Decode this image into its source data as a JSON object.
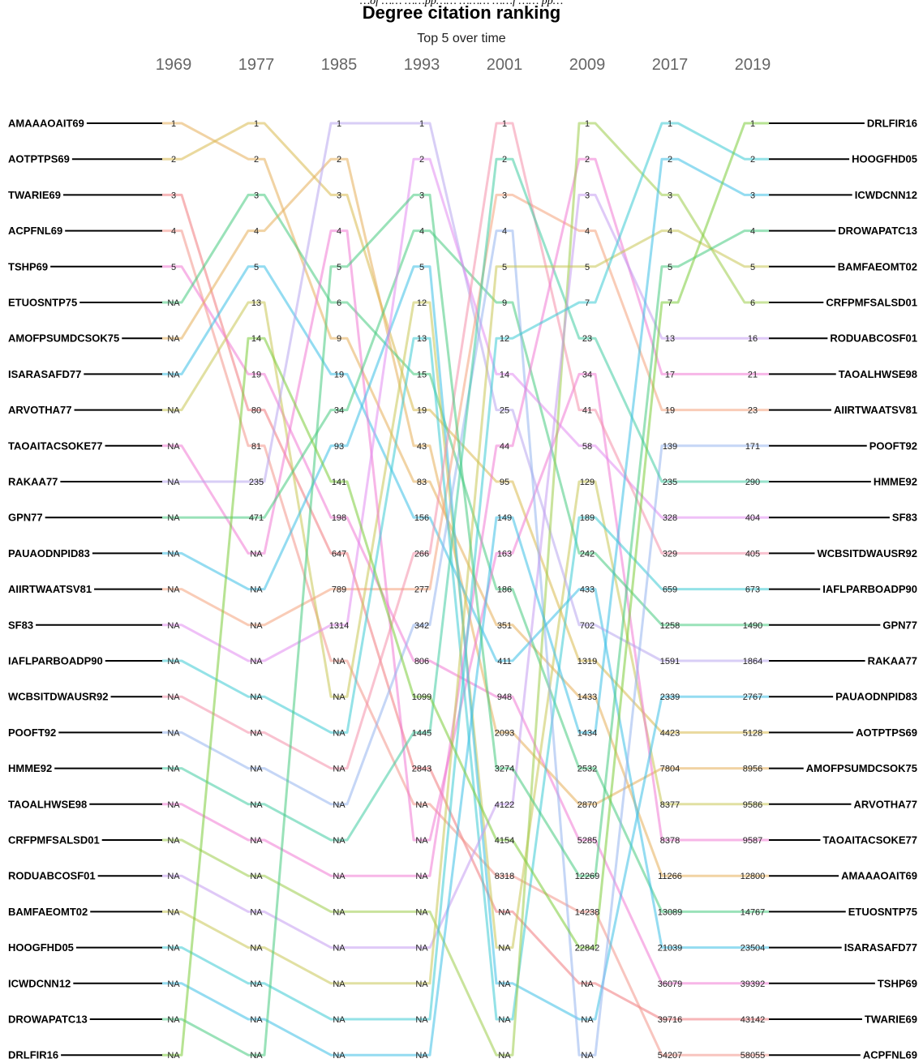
{
  "caption": "…of …… ……pp…… ……… ……f …… pp…",
  "chart_data": {
    "type": "bump",
    "title": "Degree citation ranking",
    "subtitle": "Top 5 over time",
    "years": [
      "1969",
      "1977",
      "1985",
      "1993",
      "2001",
      "2009",
      "2017",
      "2019"
    ],
    "series": [
      {
        "name": "AMAAAOAIT69",
        "color": "#e5ae59",
        "ranks": [
          "1",
          "2",
          "9",
          "83",
          "351",
          "1433",
          "11266",
          "12800"
        ]
      },
      {
        "name": "AOTPTPS69",
        "color": "#d9b94f",
        "ranks": [
          "2",
          "1",
          "3",
          "19",
          "95",
          "1319",
          "4423",
          "5128"
        ]
      },
      {
        "name": "TWARIE69",
        "color": "#f07a7e",
        "ranks": [
          "3",
          "80",
          "647",
          "2843",
          "5285",
          "36079",
          "39716",
          "43142"
        ]
      },
      {
        "name": "ACPFNL69",
        "color": "#f2958b",
        "ranks": [
          "4",
          "81",
          "1099",
          "4154",
          "8318",
          "14238",
          "54207",
          "58055"
        ]
      },
      {
        "name": "TSHP69",
        "color": "#f07ad3",
        "ranks": [
          "5",
          "19",
          "198",
          "806",
          "948",
          "5285",
          "36079",
          "39392"
        ]
      },
      {
        "name": "ETUOSNTP75",
        "color": "#47cb7f",
        "ranks": [
          "NA",
          "3",
          "6",
          "15",
          "186",
          "2532",
          "13089",
          "14767"
        ]
      },
      {
        "name": "AMOFPSUMDCSOK75",
        "color": "#e5ae59",
        "ranks": [
          "NA",
          "4",
          "2",
          "43",
          "2093",
          "2870",
          "7804",
          "8956"
        ]
      },
      {
        "name": "ISARASAFD77",
        "color": "#3dbfe6",
        "ranks": [
          "NA",
          "5",
          "19",
          "156",
          "411",
          "433",
          "21039",
          "23504"
        ]
      },
      {
        "name": "ARVOTHA77",
        "color": "#c9c655",
        "ranks": [
          "NA",
          "13",
          "3",
          "12",
          "95",
          "129",
          "8377",
          "9586"
        ]
      },
      {
        "name": "TAOAITACSOKE77",
        "color": "#f07ad3",
        "ranks": [
          "NA",
          "80",
          "4",
          "12",
          "163",
          "34",
          "8378",
          "9587"
        ]
      },
      {
        "name": "RAKAA77",
        "color": "#b8a6ee",
        "ranks": [
          "NA",
          "235",
          "1",
          "1",
          "25",
          "702",
          "1591",
          "1864"
        ]
      },
      {
        "name": "GPN77",
        "color": "#47cb7f",
        "ranks": [
          "NA",
          "471",
          "34",
          "4",
          "9",
          "242",
          "1258",
          "1490"
        ]
      },
      {
        "name": "PAUAODNPID83",
        "color": "#3dbfe6",
        "ranks": [
          "NA",
          "NA",
          "93",
          "5",
          "351",
          "433",
          "2339",
          "2767"
        ]
      },
      {
        "name": "AIIRTWAATSV81",
        "color": "#f4a37c",
        "ranks": [
          "NA",
          "NA",
          "789",
          "277",
          "3",
          "4",
          "19",
          "23"
        ]
      },
      {
        "name": "SF83",
        "color": "#e18cf0",
        "ranks": [
          "NA",
          "NA",
          "1314",
          "2",
          "14",
          "58",
          "328",
          "404"
        ]
      },
      {
        "name": "IAFLPARBOADP90",
        "color": "#3ccad3",
        "ranks": [
          "NA",
          "NA",
          "NA",
          "13",
          "9",
          "189",
          "659",
          "673"
        ]
      },
      {
        "name": "WCBSITDWAUSR92",
        "color": "#f48fa9",
        "ranks": [
          "NA",
          "NA",
          "NA",
          "266",
          "1",
          "41",
          "329",
          "405"
        ]
      },
      {
        "name": "POOFT92",
        "color": "#95b4ef",
        "ranks": [
          "NA",
          "NA",
          "NA",
          "342",
          "4",
          "34",
          "139",
          "171"
        ]
      },
      {
        "name": "HMME92",
        "color": "#41cca3",
        "ranks": [
          "NA",
          "NA",
          "NA",
          "1445",
          "2",
          "23",
          "235",
          "290"
        ]
      },
      {
        "name": "TAOALHWSE98",
        "color": "#f07ad3",
        "ranks": [
          "NA",
          "NA",
          "NA",
          "NA",
          "44",
          "2",
          "17",
          "21"
        ]
      },
      {
        "name": "CRFPMFSALSD01",
        "color": "#9ccc4a",
        "ranks": [
          "NA",
          "NA",
          "NA",
          "NA",
          "2093",
          "1",
          "3",
          "6"
        ]
      },
      {
        "name": "RODUABCOSF01",
        "color": "#c59cf0",
        "ranks": [
          "NA",
          "NA",
          "NA",
          "NA",
          "4122",
          "3",
          "13",
          "16"
        ]
      },
      {
        "name": "BAMFAEOMT02",
        "color": "#c9c655",
        "ranks": [
          "NA",
          "NA",
          "NA",
          "NA",
          "NA",
          "5",
          "4",
          "5"
        ]
      },
      {
        "name": "HOOGFHD05",
        "color": "#3ccad3",
        "ranks": [
          "NA",
          "NA",
          "NA",
          "NA",
          "NA",
          "7",
          "1",
          "2"
        ]
      },
      {
        "name": "ICWDCNN12",
        "color": "#3dbfe6",
        "ranks": [
          "NA",
          "NA",
          "NA",
          "NA",
          "NA",
          "NA",
          "2",
          "3"
        ]
      },
      {
        "name": "DROWAPATC13",
        "color": "#47cb7f",
        "ranks": [
          "NA",
          "NA",
          "NA",
          "NA",
          "NA",
          "NA",
          "5",
          "4"
        ]
      },
      {
        "name": "DRLFIR16",
        "color": "#7ccc3a",
        "ranks": [
          "NA",
          "NA",
          "NA",
          "NA",
          "NA",
          "NA",
          "7",
          "1"
        ]
      }
    ],
    "right_labels": [
      "DRLFIR16",
      "HOOGFHD05",
      "ICWDCNN12",
      "DROWAPATC13",
      "BAMFAEOMT02",
      "CRFPMFSALSD01",
      "RODUABCOSF01",
      "TAOALHWSE98",
      "AIIRTWAATSV81",
      "POOFT92",
      "HMME92",
      "SF83",
      "WCBSITDWAUSR92",
      "IAFLPARBOADP90",
      "GPN77",
      "RAKAA77",
      "PAUAODNPID83",
      "AOTPTPS69",
      "AMOFPSUMDCSOK75",
      "ARVOTHA77",
      "TAOAITACSOKE77",
      "AMAAAOAIT69",
      "ETUOSNTP75",
      "ISARASAFD77",
      "TSHP69",
      "TWARIE69",
      "ACPFNL69"
    ],
    "right_values": [
      "1",
      "2",
      "3",
      "4",
      "5",
      "6",
      "16",
      "21",
      "23",
      "171",
      "290",
      "404",
      "405",
      "673",
      "1490",
      "1864",
      "2767",
      "5128",
      "8956",
      "9586",
      "9587",
      "12800",
      "14767",
      "23504",
      "39392",
      "43142",
      "58055"
    ],
    "columns": [
      [
        "1",
        "2",
        "3",
        "4",
        "5",
        "NA",
        "NA",
        "NA",
        "NA",
        "NA",
        "NA",
        "NA",
        "NA",
        "NA",
        "NA",
        "NA",
        "NA",
        "NA",
        "NA",
        "NA",
        "NA",
        "NA",
        "NA",
        "NA",
        "NA",
        "NA",
        "NA"
      ],
      [
        "1",
        "2",
        "3",
        "4",
        "5",
        "13",
        "14",
        "19",
        "80",
        "81",
        "235",
        "471",
        "NA",
        "NA",
        "NA",
        "NA",
        "NA",
        "NA",
        "NA",
        "NA",
        "NA",
        "NA",
        "NA",
        "NA",
        "NA",
        "NA",
        "NA"
      ],
      [
        "1",
        "2",
        "3",
        "4",
        "5",
        "6",
        "9",
        "19",
        "34",
        "93",
        "141",
        "198",
        "647",
        "789",
        "1314",
        "NA",
        "NA",
        "NA",
        "NA",
        "NA",
        "NA",
        "NA",
        "NA",
        "NA",
        "NA",
        "NA",
        "NA"
      ],
      [
        "1",
        "2",
        "3",
        "4",
        "5",
        "12",
        "13",
        "15",
        "19",
        "43",
        "83",
        "156",
        "266",
        "277",
        "342",
        "806",
        "1099",
        "1445",
        "2843",
        "NA",
        "NA",
        "NA",
        "NA",
        "NA",
        "NA",
        "NA",
        "NA"
      ],
      [
        "1",
        "2",
        "3",
        "4",
        "5",
        "9",
        "12",
        "14",
        "25",
        "44",
        "95",
        "149",
        "163",
        "186",
        "351",
        "411",
        "948",
        "2093",
        "3274",
        "4122",
        "4154",
        "8318",
        "NA",
        "NA",
        "NA",
        "NA",
        "NA"
      ],
      [
        "1",
        "2",
        "3",
        "4",
        "5",
        "7",
        "23",
        "34",
        "41",
        "58",
        "129",
        "189",
        "242",
        "433",
        "702",
        "1319",
        "1433",
        "1434",
        "2532",
        "2870",
        "5285",
        "12269",
        "14238",
        "22842",
        "NA",
        "NA",
        "NA"
      ],
      [
        "1",
        "2",
        "3",
        "4",
        "5",
        "7",
        "13",
        "17",
        "19",
        "139",
        "235",
        "328",
        "329",
        "659",
        "1258",
        "1591",
        "2339",
        "4423",
        "7804",
        "8377",
        "8378",
        "11266",
        "13089",
        "21039",
        "36079",
        "39716",
        "54207"
      ],
      [
        "1",
        "2",
        "3",
        "4",
        "5",
        "6",
        "16",
        "21",
        "23",
        "171",
        "290",
        "404",
        "405",
        "673",
        "1490",
        "1864",
        "2767",
        "5128",
        "8956",
        "9586",
        "9587",
        "12800",
        "14767",
        "23504",
        "39392",
        "43142",
        "58055"
      ]
    ]
  }
}
